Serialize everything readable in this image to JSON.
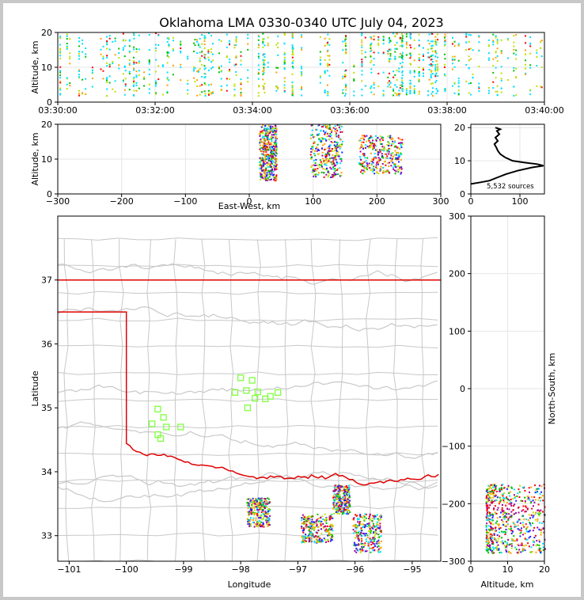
{
  "title": "Oklahoma LMA 0330-0340 UTC July 04, 2023",
  "colors": {
    "state_border": "#e00000",
    "county_lines": "#c8c8c8",
    "stations": "#80ff40",
    "density_scale": [
      "#2020ff",
      "#00e0ff",
      "#00c000",
      "#c0e000",
      "#ffa000",
      "#ff0000",
      "#a000a0"
    ]
  },
  "chart_data": [
    {
      "name": "time-altitude",
      "type": "heatmap",
      "xlabel": "",
      "ylabel": "Altitude, km",
      "x_ticks": [
        "03:30:00",
        "03:32:00",
        "03:34:00",
        "03:36:00",
        "03:38:00",
        "03:40:00"
      ],
      "y_ticks": [
        "0",
        "10",
        "20"
      ],
      "xlim": [
        "03:30:00",
        "03:40:00"
      ],
      "ylim": [
        0,
        20
      ],
      "grid": true
    },
    {
      "name": "east-west-altitude",
      "type": "heatmap",
      "xlabel": "East-West, km",
      "ylabel": "Altitude, km",
      "x_ticks": [
        "−300",
        "−200",
        "−100",
        "0",
        "100",
        "200",
        "300"
      ],
      "y_ticks": [
        "0",
        "10",
        "20"
      ],
      "xlim": [
        -300,
        300
      ],
      "ylim": [
        0,
        20
      ],
      "clusters": [
        {
          "x": [
            15,
            42
          ],
          "alt": [
            4,
            20
          ]
        },
        {
          "x": [
            95,
            145
          ],
          "alt": [
            5,
            20
          ]
        },
        {
          "x": [
            170,
            240
          ],
          "alt": [
            6,
            17
          ]
        }
      ],
      "grid": true
    },
    {
      "name": "altitude-histogram",
      "type": "line",
      "x_ticks": [
        "0",
        "100"
      ],
      "y_ticks": [
        "0",
        "10",
        "20"
      ],
      "xlim": [
        0,
        150
      ],
      "ylim": [
        0,
        21
      ],
      "annotation": "5,532 sources",
      "profile": [
        [
          0,
          3
        ],
        [
          20,
          3.5
        ],
        [
          38,
          4
        ],
        [
          55,
          5
        ],
        [
          72,
          6
        ],
        [
          95,
          7
        ],
        [
          125,
          8
        ],
        [
          148,
          8.5
        ],
        [
          135,
          9
        ],
        [
          108,
          9.5
        ],
        [
          85,
          10
        ],
        [
          70,
          11
        ],
        [
          60,
          12
        ],
        [
          55,
          13
        ],
        [
          52,
          14
        ],
        [
          48,
          15
        ],
        [
          55,
          16
        ],
        [
          50,
          17
        ],
        [
          58,
          18
        ],
        [
          53,
          19
        ],
        [
          60,
          19.5
        ],
        [
          50,
          20
        ]
      ]
    },
    {
      "name": "plan-view",
      "type": "scatter",
      "xlabel": "Longitude",
      "ylabel": "Latitude",
      "x_ticks": [
        "−101",
        "−100",
        "−99",
        "−98",
        "−97",
        "−96",
        "−95"
      ],
      "y_ticks": [
        "33",
        "34",
        "35",
        "36",
        "37"
      ],
      "xlim": [
        -101.2,
        -94.5
      ],
      "ylim": [
        32.6,
        38.0
      ],
      "stations": [
        [
          -99.45,
          34.98
        ],
        [
          -99.35,
          34.85
        ],
        [
          -99.55,
          34.75
        ],
        [
          -99.3,
          34.7
        ],
        [
          -99.45,
          34.58
        ],
        [
          -99.4,
          34.52
        ],
        [
          -99.05,
          34.7
        ],
        [
          -98.0,
          35.47
        ],
        [
          -97.8,
          35.43
        ],
        [
          -97.9,
          35.27
        ],
        [
          -98.1,
          35.24
        ],
        [
          -97.7,
          35.25
        ],
        [
          -97.75,
          35.15
        ],
        [
          -97.57,
          35.14
        ],
        [
          -97.48,
          35.18
        ],
        [
          -97.35,
          35.24
        ],
        [
          -97.88,
          35.0
        ]
      ],
      "clusters": [
        {
          "lon": [
            -97.9,
            -97.5
          ],
          "lat": [
            33.15,
            33.6
          ]
        },
        {
          "lon": [
            -96.95,
            -96.4
          ],
          "lat": [
            32.9,
            33.35
          ]
        },
        {
          "lon": [
            -96.05,
            -95.55
          ],
          "lat": [
            32.75,
            33.35
          ]
        },
        {
          "lon": [
            -96.4,
            -96.1
          ],
          "lat": [
            33.35,
            33.8
          ]
        }
      ],
      "grid": false
    },
    {
      "name": "north-south-altitude",
      "type": "heatmap",
      "xlabel": "Altitude, km",
      "ylabel": "North-South, km",
      "x_ticks": [
        "0",
        "10",
        "20"
      ],
      "y_ticks": [
        "300",
        "200",
        "100",
        "0",
        "−100",
        "−200",
        "−300"
      ],
      "xlim": [
        0,
        20
      ],
      "ylim": [
        -300,
        300
      ],
      "clusters": [
        {
          "alt": [
            4,
            20
          ],
          "ns": [
            -285,
            -165
          ]
        }
      ],
      "grid": true
    }
  ]
}
